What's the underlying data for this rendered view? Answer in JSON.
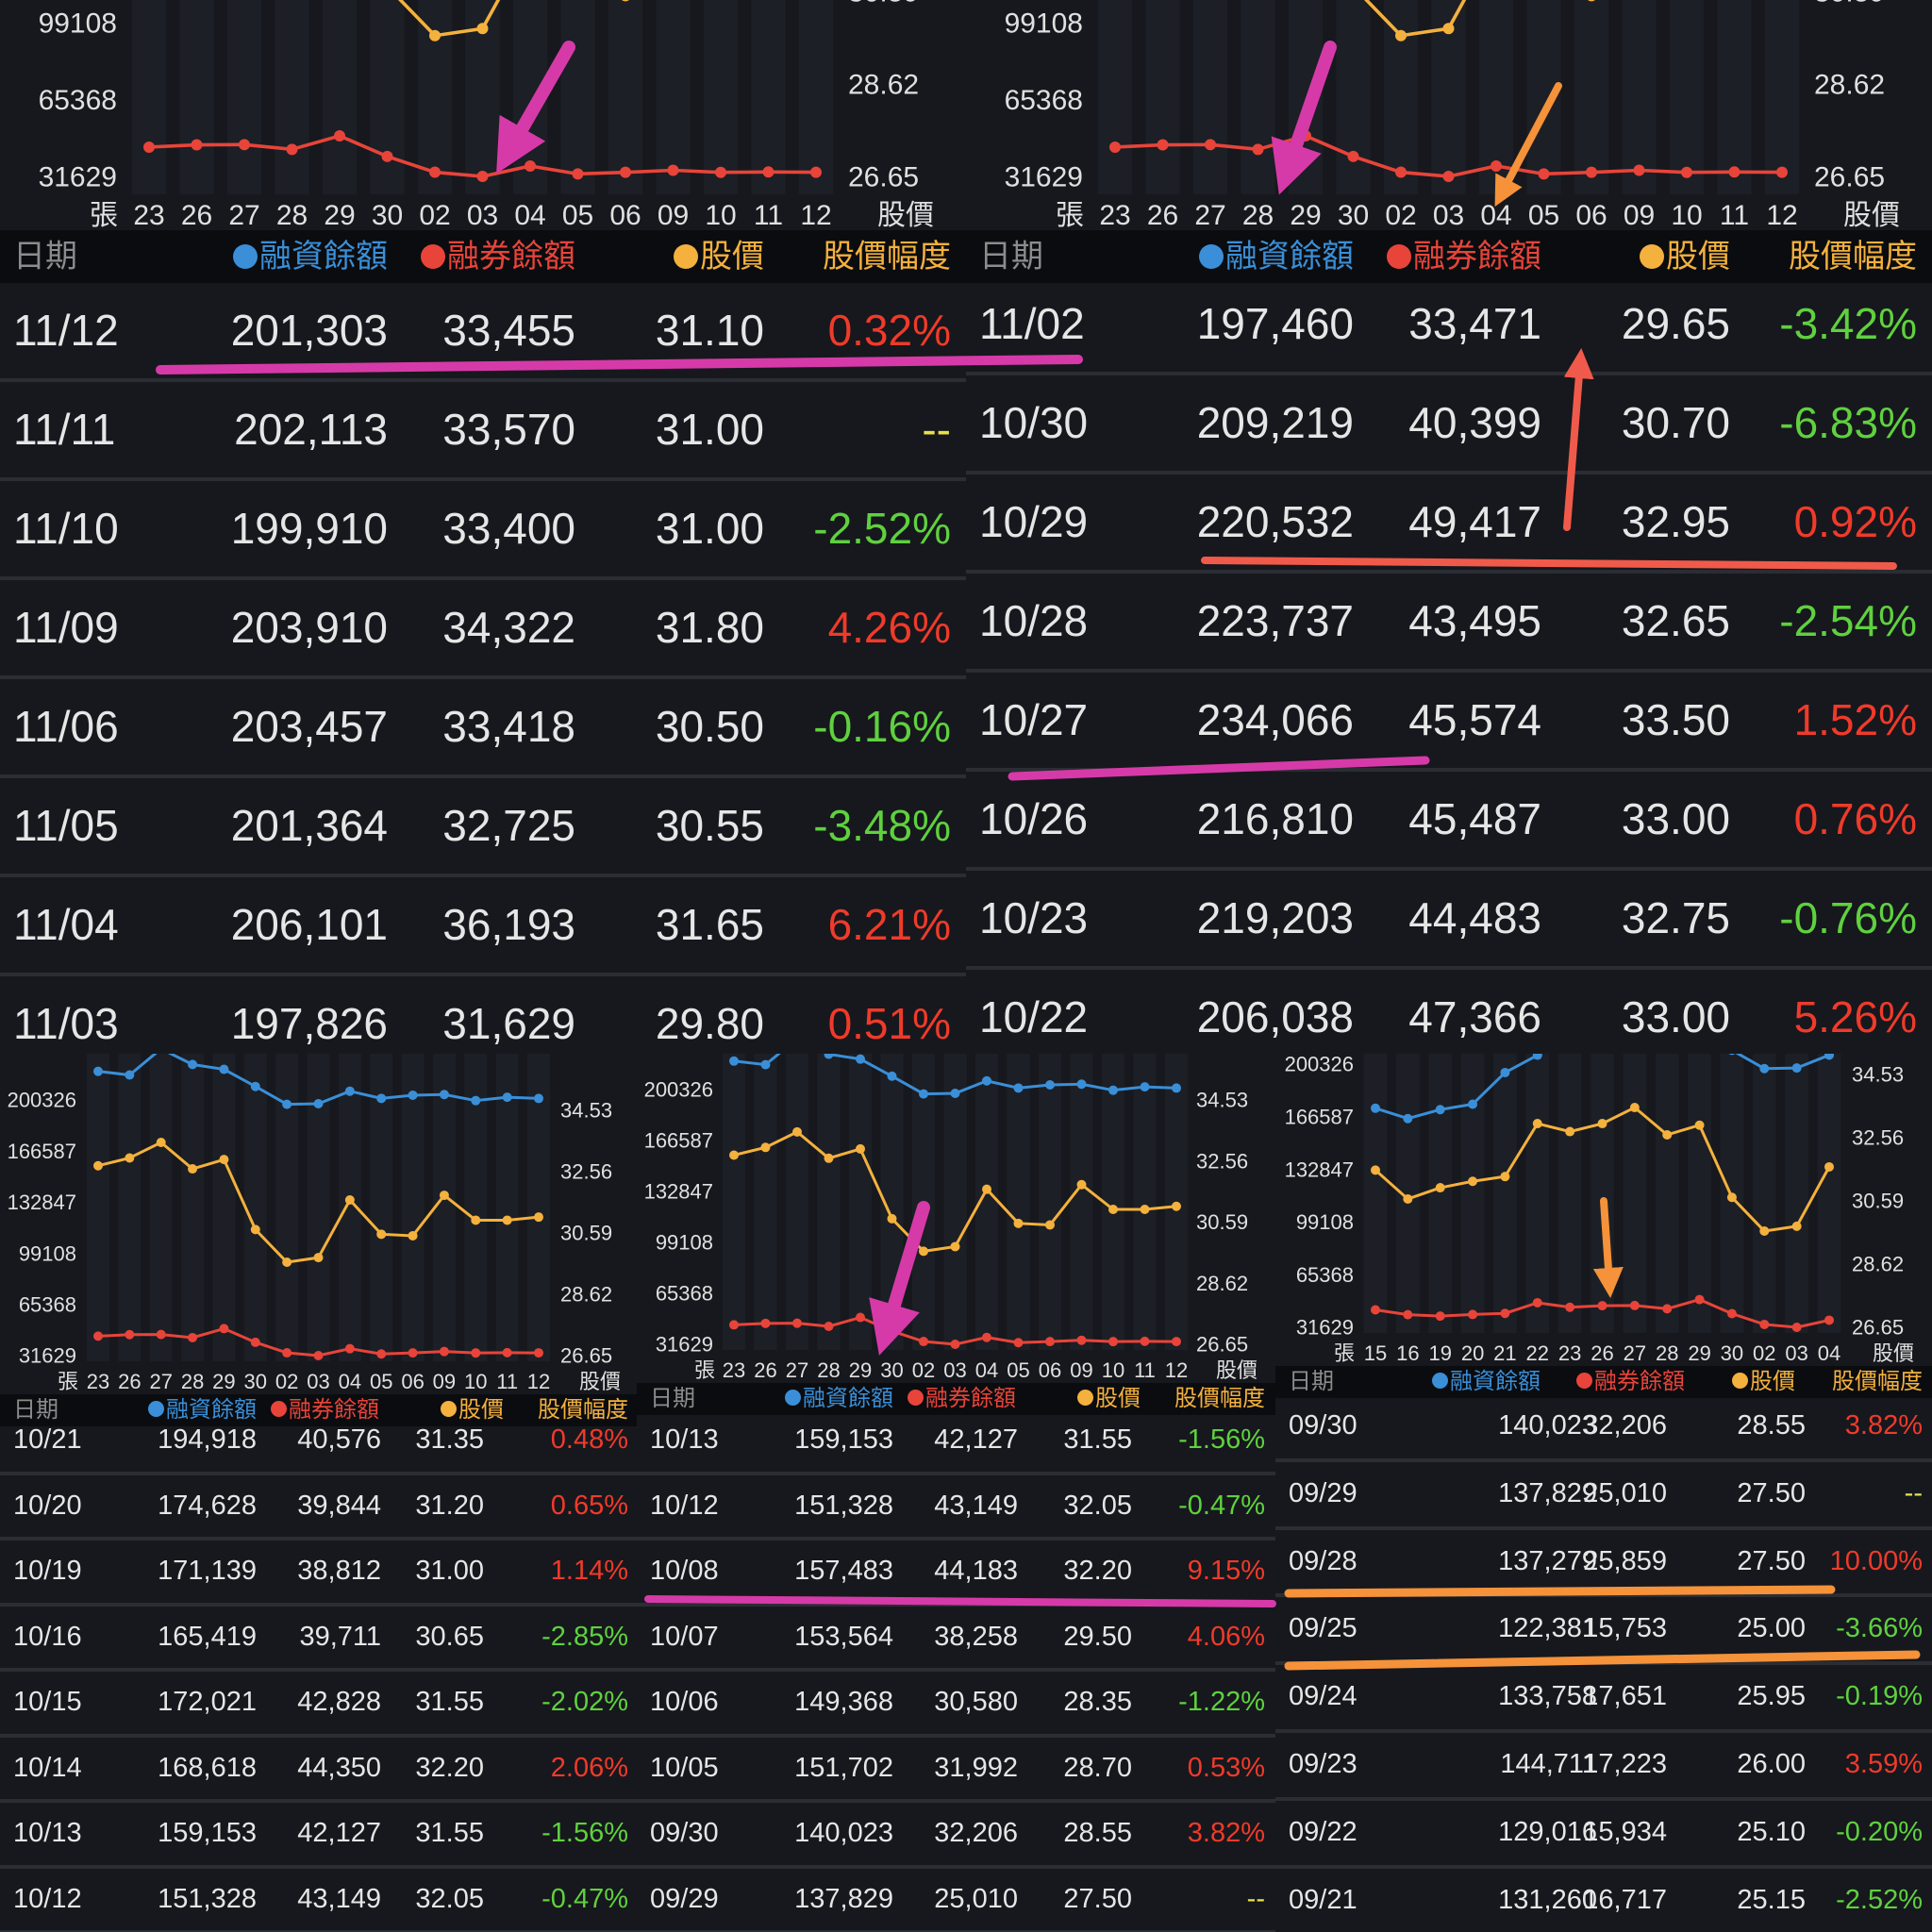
{
  "colors": {
    "background": "#16181d",
    "header": "#0b0c0f",
    "margin": "#3a8fd8",
    "short": "#e8443a",
    "price": "#f4b13d",
    "up": "#f03a2a",
    "down": "#5fd13e",
    "flat": "#e8e04a",
    "pink_annotation": "#d63aa8",
    "orange_annotation": "#f5923a",
    "salmon_annotation": "#f05a4a"
  },
  "header": {
    "date": "日期",
    "margin": "融資餘額",
    "short": "融券餘額",
    "price": "股價",
    "pct": "股價幅度"
  },
  "axis": {
    "left_unit": "張",
    "right_unit": "股價"
  },
  "chart_data": {
    "type": "line",
    "left_ticks": [
      31629,
      65368,
      99108,
      132847,
      166587,
      200326
    ],
    "right_ticks": [
      26.65,
      28.62,
      30.59,
      32.56,
      34.53
    ],
    "datasets": {
      "oct23_nov12": {
        "x": [
          "23",
          "26",
          "27",
          "28",
          "29",
          "30",
          "02",
          "03",
          "04",
          "05",
          "06",
          "09",
          "10",
          "11",
          "12"
        ],
        "series": [
          {
            "name": "融資餘額",
            "axis": "left",
            "color": "#3a8fd8",
            "values": [
              219203,
              216810,
              234066,
              223737,
              220532,
              209219,
              197460,
              197826,
              206101,
              201364,
              203457,
              203910,
              199910,
              202113,
              201303
            ]
          },
          {
            "name": "融券餘額",
            "axis": "left",
            "color": "#e8443a",
            "values": [
              44483,
              45487,
              45574,
              43495,
              49417,
              40399,
              33471,
              31629,
              36193,
              32725,
              33418,
              34322,
              33400,
              33570,
              33455
            ]
          },
          {
            "name": "股價",
            "axis": "right",
            "color": "#f4b13d",
            "values": [
              32.75,
              33.0,
              33.5,
              32.65,
              32.95,
              30.7,
              29.65,
              29.8,
              31.65,
              30.55,
              30.5,
              31.8,
              31.0,
              31.0,
              31.1
            ]
          }
        ]
      },
      "oct15_nov04": {
        "x": [
          "15",
          "16",
          "19",
          "20",
          "21",
          "22",
          "23",
          "26",
          "27",
          "28",
          "29",
          "30",
          "02",
          "03",
          "04"
        ],
        "series": [
          {
            "name": "融資餘額",
            "axis": "left",
            "color": "#3a8fd8",
            "values": [
              172021,
              165419,
              171139,
              174628,
              194918,
              206038,
              219203,
              216810,
              234066,
              223737,
              220532,
              209219,
              197460,
              197826,
              206101
            ]
          },
          {
            "name": "融券餘額",
            "axis": "left",
            "color": "#e8443a",
            "values": [
              42828,
              39711,
              38812,
              39844,
              40576,
              47366,
              44483,
              45487,
              45574,
              43495,
              49417,
              40399,
              33471,
              31629,
              36193
            ]
          },
          {
            "name": "股價",
            "axis": "right",
            "color": "#f4b13d",
            "values": [
              31.55,
              30.65,
              31.0,
              31.2,
              31.35,
              33.0,
              32.75,
              33.0,
              33.5,
              32.65,
              32.95,
              30.7,
              29.65,
              29.8,
              31.65
            ]
          }
        ]
      }
    },
    "charts": [
      {
        "panel": "top-left",
        "dataset": "oct23_nov12"
      },
      {
        "panel": "top-right",
        "dataset": "oct23_nov12"
      },
      {
        "panel": "bottom-left",
        "dataset": "oct23_nov12"
      },
      {
        "panel": "bottom-middle",
        "dataset": "oct23_nov12"
      },
      {
        "panel": "bottom-right",
        "dataset": "oct15_nov04"
      }
    ]
  },
  "panels": {
    "top-left": {
      "rows": [
        [
          "11/12",
          "201,303",
          "33,455",
          "31.10",
          "0.32%"
        ],
        [
          "11/11",
          "202,113",
          "33,570",
          "31.00",
          "--"
        ],
        [
          "11/10",
          "199,910",
          "33,400",
          "31.00",
          "-2.52%"
        ],
        [
          "11/09",
          "203,910",
          "34,322",
          "31.80",
          "4.26%"
        ],
        [
          "11/06",
          "203,457",
          "33,418",
          "30.50",
          "-0.16%"
        ],
        [
          "11/05",
          "201,364",
          "32,725",
          "30.55",
          "-3.48%"
        ],
        [
          "11/04",
          "206,101",
          "36,193",
          "31.65",
          "6.21%"
        ],
        [
          "11/03",
          "197,826",
          "31,629",
          "29.80",
          "0.51%"
        ]
      ]
    },
    "top-right": {
      "rows": [
        [
          "11/02",
          "197,460",
          "33,471",
          "29.65",
          "-3.42%"
        ],
        [
          "10/30",
          "209,219",
          "40,399",
          "30.70",
          "-6.83%"
        ],
        [
          "10/29",
          "220,532",
          "49,417",
          "32.95",
          "0.92%"
        ],
        [
          "10/28",
          "223,737",
          "43,495",
          "32.65",
          "-2.54%"
        ],
        [
          "10/27",
          "234,066",
          "45,574",
          "33.50",
          "1.52%"
        ],
        [
          "10/26",
          "216,810",
          "45,487",
          "33.00",
          "0.76%"
        ],
        [
          "10/23",
          "219,203",
          "44,483",
          "32.75",
          "-0.76%"
        ],
        [
          "10/22",
          "206,038",
          "47,366",
          "33.00",
          "5.26%"
        ]
      ]
    },
    "bottom-left": {
      "rows": [
        [
          "10/21",
          "194,918",
          "40,576",
          "31.35",
          "0.48%"
        ],
        [
          "10/20",
          "174,628",
          "39,844",
          "31.20",
          "0.65%"
        ],
        [
          "10/19",
          "171,139",
          "38,812",
          "31.00",
          "1.14%"
        ],
        [
          "10/16",
          "165,419",
          "39,711",
          "30.65",
          "-2.85%"
        ],
        [
          "10/15",
          "172,021",
          "42,828",
          "31.55",
          "-2.02%"
        ],
        [
          "10/14",
          "168,618",
          "44,350",
          "32.20",
          "2.06%"
        ],
        [
          "10/13",
          "159,153",
          "42,127",
          "31.55",
          "-1.56%"
        ],
        [
          "10/12",
          "151,328",
          "43,149",
          "32.05",
          "-0.47%"
        ]
      ]
    },
    "bottom-middle": {
      "rows": [
        [
          "10/13",
          "159,153",
          "42,127",
          "31.55",
          "-1.56%"
        ],
        [
          "10/12",
          "151,328",
          "43,149",
          "32.05",
          "-0.47%"
        ],
        [
          "10/08",
          "157,483",
          "44,183",
          "32.20",
          "9.15%"
        ],
        [
          "10/07",
          "153,564",
          "38,258",
          "29.50",
          "4.06%"
        ],
        [
          "10/06",
          "149,368",
          "30,580",
          "28.35",
          "-1.22%"
        ],
        [
          "10/05",
          "151,702",
          "31,992",
          "28.70",
          "0.53%"
        ],
        [
          "09/30",
          "140,023",
          "32,206",
          "28.55",
          "3.82%"
        ],
        [
          "09/29",
          "137,829",
          "25,010",
          "27.50",
          "--"
        ]
      ]
    },
    "bottom-right": {
      "rows": [
        [
          "09/30",
          "140,023",
          "32,206",
          "28.55",
          "3.82%"
        ],
        [
          "09/29",
          "137,829",
          "25,010",
          "27.50",
          "--"
        ],
        [
          "09/28",
          "137,279",
          "25,859",
          "27.50",
          "10.00%"
        ],
        [
          "09/25",
          "122,381",
          "15,753",
          "25.00",
          "-3.66%"
        ],
        [
          "09/24",
          "133,758",
          "17,651",
          "25.95",
          "-0.19%"
        ],
        [
          "09/23",
          "144,711",
          "17,223",
          "26.00",
          "3.59%"
        ],
        [
          "09/22",
          "129,016",
          "15,934",
          "25.10",
          "-0.20%"
        ],
        [
          "09/21",
          "131,260",
          "16,717",
          "25.15",
          "-2.52%"
        ]
      ]
    }
  }
}
